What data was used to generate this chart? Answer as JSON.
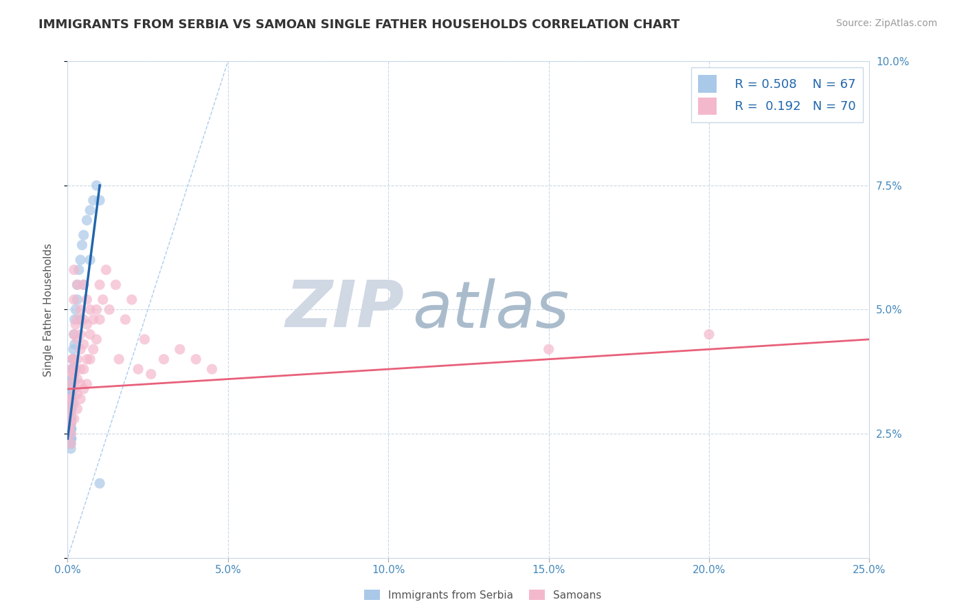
{
  "title": "IMMIGRANTS FROM SERBIA VS SAMOAN SINGLE FATHER HOUSEHOLDS CORRELATION CHART",
  "source": "Source: ZipAtlas.com",
  "ylabel": "Single Father Households",
  "xlim": [
    0.0,
    0.25
  ],
  "ylim": [
    0.0,
    0.1
  ],
  "xticks": [
    0.0,
    0.05,
    0.1,
    0.15,
    0.2,
    0.25
  ],
  "yticks": [
    0.0,
    0.025,
    0.05,
    0.075,
    0.1
  ],
  "xticklabels": [
    "0.0%",
    "5.0%",
    "10.0%",
    "15.0%",
    "20.0%",
    "25.0%"
  ],
  "yticklabels": [
    "",
    "2.5%",
    "5.0%",
    "7.5%",
    "10.0%"
  ],
  "legend_r1": "R = 0.508",
  "legend_n1": "N = 67",
  "legend_r2": "R =  0.192",
  "legend_n2": "N = 70",
  "legend_label1": "Immigrants from Serbia",
  "legend_label2": "Samoans",
  "blue_color": "#aac8e8",
  "pink_color": "#f4b8cc",
  "blue_line_color": "#2166ac",
  "pink_line_color": "#e8607a",
  "ref_line_color": "#aaccee",
  "watermark_zip": "ZIP",
  "watermark_atlas": "atlas",
  "watermark_color_zip": "#d0d8e4",
  "watermark_color_atlas": "#aabccc",
  "serbia_scatter": [
    [
      0.0005,
      0.031
    ],
    [
      0.0005,
      0.03
    ],
    [
      0.0005,
      0.029
    ],
    [
      0.0005,
      0.028
    ],
    [
      0.0007,
      0.033
    ],
    [
      0.0007,
      0.031
    ],
    [
      0.0007,
      0.03
    ],
    [
      0.0007,
      0.029
    ],
    [
      0.0007,
      0.027
    ],
    [
      0.0007,
      0.026
    ],
    [
      0.0007,
      0.025
    ],
    [
      0.0007,
      0.024
    ],
    [
      0.0008,
      0.034
    ],
    [
      0.0008,
      0.032
    ],
    [
      0.0008,
      0.031
    ],
    [
      0.0008,
      0.029
    ],
    [
      0.0008,
      0.028
    ],
    [
      0.0008,
      0.027
    ],
    [
      0.0008,
      0.026
    ],
    [
      0.0008,
      0.025
    ],
    [
      0.0008,
      0.024
    ],
    [
      0.0008,
      0.023
    ],
    [
      0.001,
      0.035
    ],
    [
      0.001,
      0.033
    ],
    [
      0.001,
      0.03
    ],
    [
      0.001,
      0.028
    ],
    [
      0.001,
      0.027
    ],
    [
      0.001,
      0.026
    ],
    [
      0.001,
      0.025
    ],
    [
      0.001,
      0.024
    ],
    [
      0.001,
      0.023
    ],
    [
      0.001,
      0.022
    ],
    [
      0.0012,
      0.036
    ],
    [
      0.0012,
      0.034
    ],
    [
      0.0012,
      0.032
    ],
    [
      0.0012,
      0.03
    ],
    [
      0.0012,
      0.028
    ],
    [
      0.0012,
      0.026
    ],
    [
      0.0012,
      0.024
    ],
    [
      0.0014,
      0.038
    ],
    [
      0.0014,
      0.035
    ],
    [
      0.0014,
      0.033
    ],
    [
      0.0014,
      0.031
    ],
    [
      0.0016,
      0.04
    ],
    [
      0.0016,
      0.038
    ],
    [
      0.0016,
      0.036
    ],
    [
      0.0018,
      0.042
    ],
    [
      0.0018,
      0.04
    ],
    [
      0.002,
      0.045
    ],
    [
      0.0022,
      0.048
    ],
    [
      0.0022,
      0.043
    ],
    [
      0.0025,
      0.05
    ],
    [
      0.003,
      0.055
    ],
    [
      0.003,
      0.052
    ],
    [
      0.0035,
      0.058
    ],
    [
      0.004,
      0.06
    ],
    [
      0.004,
      0.048
    ],
    [
      0.0045,
      0.063
    ],
    [
      0.005,
      0.065
    ],
    [
      0.005,
      0.055
    ],
    [
      0.006,
      0.068
    ],
    [
      0.007,
      0.07
    ],
    [
      0.007,
      0.06
    ],
    [
      0.008,
      0.072
    ],
    [
      0.009,
      0.075
    ],
    [
      0.01,
      0.072
    ],
    [
      0.01,
      0.015
    ]
  ],
  "samoa_scatter": [
    [
      0.0005,
      0.032
    ],
    [
      0.0005,
      0.03
    ],
    [
      0.0005,
      0.028
    ],
    [
      0.0005,
      0.026
    ],
    [
      0.001,
      0.038
    ],
    [
      0.001,
      0.035
    ],
    [
      0.001,
      0.032
    ],
    [
      0.001,
      0.029
    ],
    [
      0.001,
      0.027
    ],
    [
      0.001,
      0.025
    ],
    [
      0.001,
      0.023
    ],
    [
      0.0015,
      0.04
    ],
    [
      0.0015,
      0.037
    ],
    [
      0.002,
      0.058
    ],
    [
      0.002,
      0.052
    ],
    [
      0.002,
      0.045
    ],
    [
      0.002,
      0.04
    ],
    [
      0.002,
      0.037
    ],
    [
      0.002,
      0.034
    ],
    [
      0.002,
      0.031
    ],
    [
      0.002,
      0.028
    ],
    [
      0.0025,
      0.047
    ],
    [
      0.0025,
      0.038
    ],
    [
      0.003,
      0.055
    ],
    [
      0.003,
      0.048
    ],
    [
      0.003,
      0.044
    ],
    [
      0.003,
      0.04
    ],
    [
      0.003,
      0.036
    ],
    [
      0.003,
      0.033
    ],
    [
      0.003,
      0.03
    ],
    [
      0.004,
      0.05
    ],
    [
      0.004,
      0.045
    ],
    [
      0.004,
      0.042
    ],
    [
      0.004,
      0.038
    ],
    [
      0.004,
      0.035
    ],
    [
      0.004,
      0.032
    ],
    [
      0.005,
      0.055
    ],
    [
      0.005,
      0.048
    ],
    [
      0.005,
      0.043
    ],
    [
      0.005,
      0.038
    ],
    [
      0.005,
      0.034
    ],
    [
      0.006,
      0.052
    ],
    [
      0.006,
      0.047
    ],
    [
      0.006,
      0.04
    ],
    [
      0.006,
      0.035
    ],
    [
      0.007,
      0.05
    ],
    [
      0.007,
      0.045
    ],
    [
      0.007,
      0.04
    ],
    [
      0.008,
      0.048
    ],
    [
      0.008,
      0.042
    ],
    [
      0.009,
      0.05
    ],
    [
      0.009,
      0.044
    ],
    [
      0.01,
      0.055
    ],
    [
      0.01,
      0.048
    ],
    [
      0.011,
      0.052
    ],
    [
      0.012,
      0.058
    ],
    [
      0.013,
      0.05
    ],
    [
      0.015,
      0.055
    ],
    [
      0.016,
      0.04
    ],
    [
      0.018,
      0.048
    ],
    [
      0.02,
      0.052
    ],
    [
      0.022,
      0.038
    ],
    [
      0.024,
      0.044
    ],
    [
      0.026,
      0.037
    ],
    [
      0.03,
      0.04
    ],
    [
      0.035,
      0.042
    ],
    [
      0.04,
      0.04
    ],
    [
      0.045,
      0.038
    ],
    [
      0.15,
      0.042
    ],
    [
      0.2,
      0.045
    ]
  ],
  "serbia_trendline": [
    [
      0.0,
      0.024
    ],
    [
      0.01,
      0.075
    ]
  ],
  "samoa_trendline": [
    [
      0.0,
      0.034
    ],
    [
      0.25,
      0.044
    ]
  ],
  "ref_line": [
    [
      0.0,
      0.0
    ],
    [
      0.05,
      0.1
    ]
  ]
}
